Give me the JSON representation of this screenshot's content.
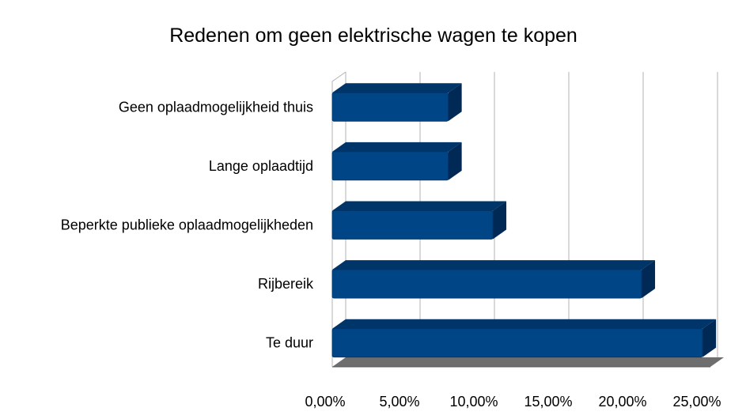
{
  "chart_data": {
    "type": "bar",
    "orientation": "horizontal",
    "title": "Redenen om geen elektrische wagen te kopen",
    "xlabel": "",
    "ylabel": "",
    "categories": [
      "Geen oplaadmogelijkheid thuis",
      "Lange oplaadtijd",
      "Beperkte publieke oplaadmogelijkheden",
      "Rijbereik",
      "Te duur"
    ],
    "values": [
      7.8,
      7.8,
      10.8,
      20.8,
      24.9
    ],
    "xlim": [
      0,
      25
    ],
    "x_ticks": [
      0,
      5,
      10,
      15,
      20,
      25
    ],
    "x_tick_labels": [
      "0,00%",
      "5,00%",
      "10,00%",
      "15,00%",
      "20,00%",
      "25,00%"
    ],
    "grid": "vertical",
    "legend": "none",
    "style": "3d",
    "colors": {
      "bar_front": "#004586",
      "bar_top": "#003569",
      "bar_side": "#002a55",
      "floor": "#6e6e6e",
      "grid": "#b3b3b3"
    }
  }
}
